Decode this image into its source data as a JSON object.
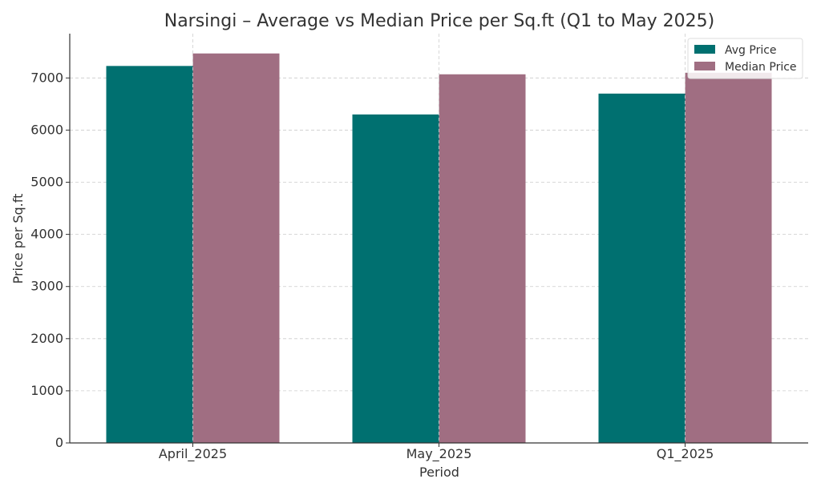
{
  "chart_data": {
    "type": "bar",
    "title": "Narsingi – Average vs Median Price per Sq.ft (Q1 to May 2025)",
    "xlabel": "Period",
    "ylabel": "Price per Sq.ft",
    "categories": [
      "April_2025",
      "May_2025",
      "Q1_2025"
    ],
    "series": [
      {
        "name": "Avg Price",
        "values": [
          7230,
          6300,
          6700
        ],
        "color": "#007070"
      },
      {
        "name": "Median Price",
        "values": [
          7470,
          7070,
          7100
        ],
        "color": "#a06e82"
      }
    ],
    "ylim": [
      0,
      7850
    ],
    "yticks": [
      0,
      1000,
      2000,
      3000,
      4000,
      5000,
      6000,
      7000
    ],
    "grid": true,
    "legend_position": "top-right"
  }
}
